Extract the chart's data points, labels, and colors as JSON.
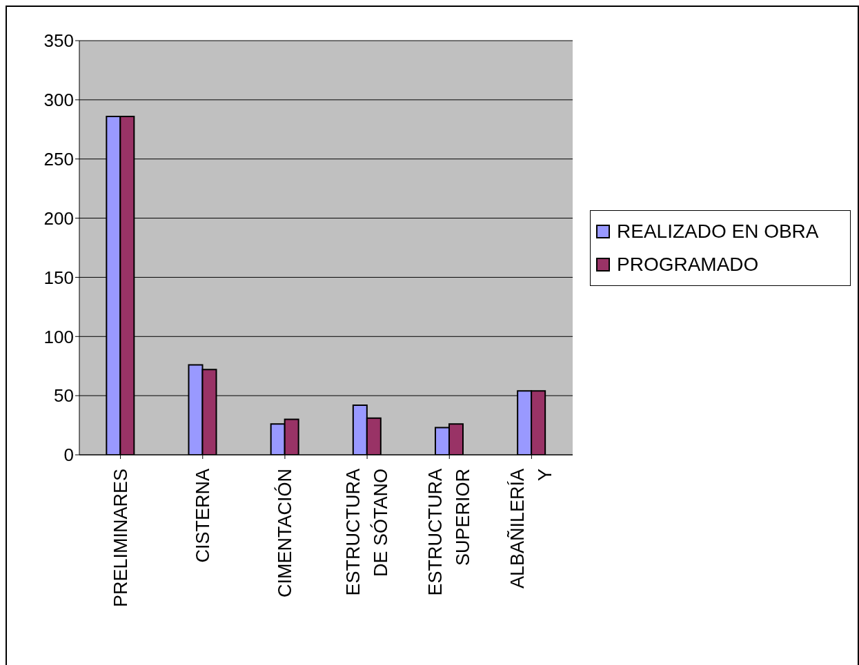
{
  "chart_data": {
    "type": "bar",
    "categories": [
      "PRELIMINARES",
      "CISTERNA",
      "CIMENTACIÓN",
      "ESTRUCTURA DE SÓTANO",
      "ESTRUCTURA SUPERIOR",
      "ALBAÑILERÍA Y"
    ],
    "series": [
      {
        "name": "REALIZADO EN OBRA",
        "color": "#9999ff",
        "values": [
          286,
          76,
          26,
          42,
          23,
          54
        ]
      },
      {
        "name": "PROGRAMADO",
        "color": "#993366",
        "values": [
          286,
          72,
          30,
          31,
          26,
          54
        ]
      }
    ],
    "ylim": [
      0,
      350
    ],
    "yticks": [
      0,
      50,
      100,
      150,
      200,
      250,
      300,
      350
    ],
    "grid": "y",
    "legend": "right"
  }
}
